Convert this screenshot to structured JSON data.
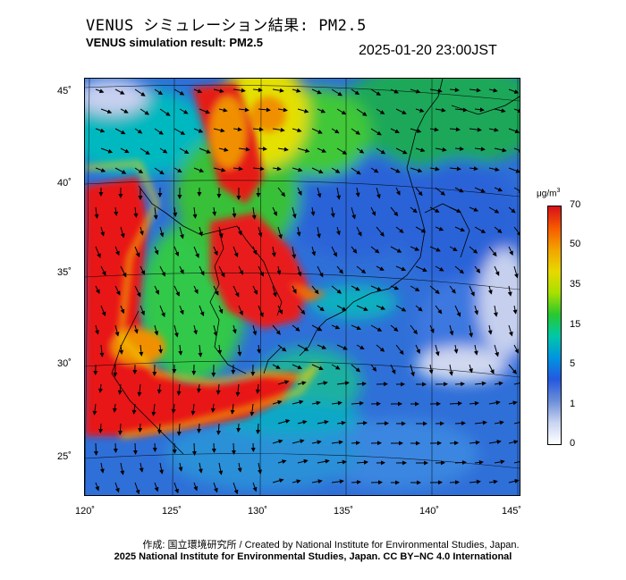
{
  "header": {
    "title_ja": "VENUS シミュレーション結果: PM2.5",
    "title_en": "VENUS simulation result: PM2.5",
    "timestamp": "2025-01-20 23:00JST"
  },
  "map": {
    "variable": "PM2.5",
    "lat_ticks": [
      "45˚",
      "40˚",
      "35˚",
      "30˚",
      "25˚"
    ],
    "lon_ticks": [
      "120˚",
      "125˚",
      "130˚",
      "135˚",
      "140˚",
      "145˚"
    ],
    "features": [
      "wind-vector-arrows",
      "coastlines",
      "lat-lon-gridlines"
    ]
  },
  "colorbar": {
    "unit": "μg/m",
    "unit_sup": "3",
    "labels": [
      "70",
      "50",
      "35",
      "15",
      "5",
      "1",
      "0"
    ],
    "colors": [
      "#d8101a",
      "#f65a00",
      "#f2a400",
      "#e8d800",
      "#a8e000",
      "#28c830",
      "#00c8a8",
      "#0094e0",
      "#2458e0",
      "#6c8ed8",
      "#c8d4f0",
      "#ffffff"
    ]
  },
  "footer": {
    "credit_ja": "作成: 国立環境研究所 / Created by National Institute for Environmental Studies, Japan.",
    "credit_en": "2025 National Institute for Environmental Studies, Japan. CC BY−NC 4.0 International"
  }
}
